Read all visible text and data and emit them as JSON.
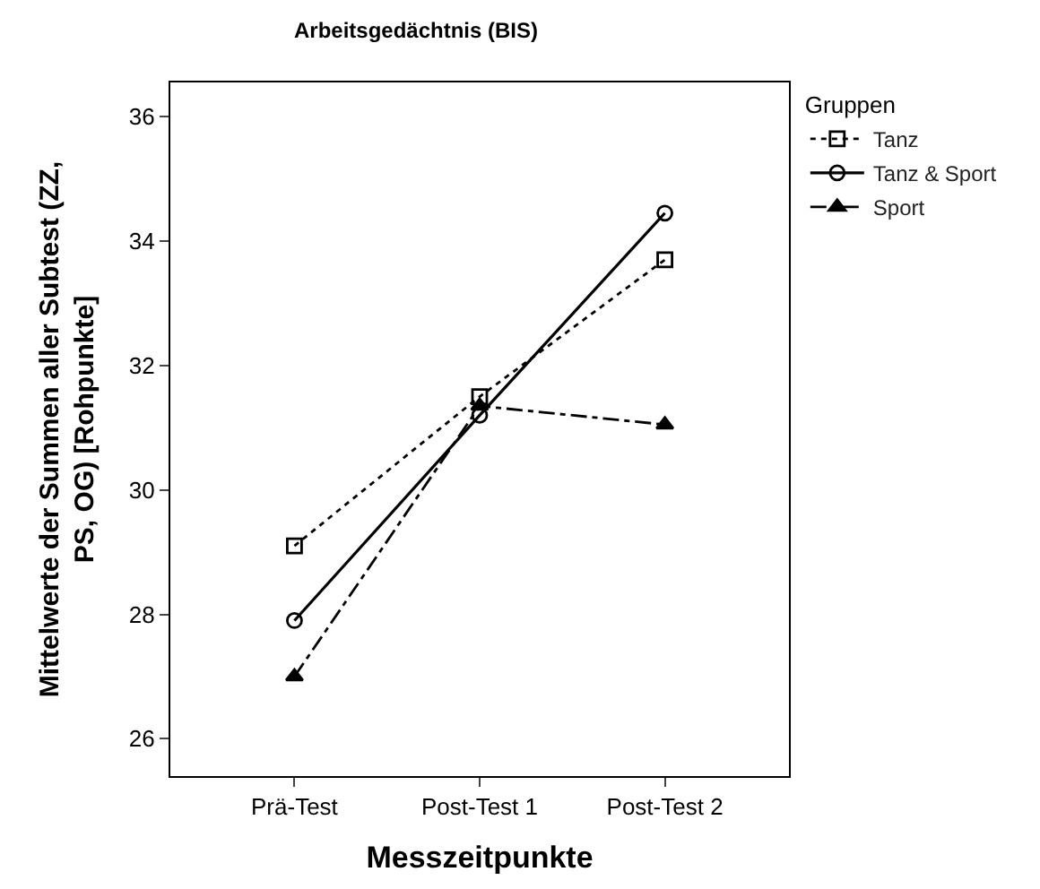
{
  "chart_data": {
    "type": "line",
    "title": "Arbeitsgedächtnis (BIS)",
    "xlabel": "Messzeitpunkte",
    "ylabel": "Mittelwerte der Summen aller Subtest (ZZ,\nPS, OG) [Rohpunkte]",
    "legend_title": "Gruppen",
    "legend": "top right",
    "categories": [
      "Prä-Test",
      "Post-Test 1",
      "Post-Test 2"
    ],
    "ylim": [
      25.4,
      36.55
    ],
    "yticks": [
      26,
      28,
      30,
      32,
      34,
      36
    ],
    "series": [
      {
        "name": "Tanz",
        "color": "#000000",
        "values": [
          29.1,
          31.5,
          33.7
        ],
        "marker": "square",
        "line_style": "dotted"
      },
      {
        "name": "Tanz & Sport",
        "color": "#000000",
        "values": [
          27.9,
          31.2,
          34.45
        ],
        "marker": "circle",
        "line_style": "solid"
      },
      {
        "name": "Sport",
        "color": "#000000",
        "values": [
          27.0,
          31.35,
          31.05
        ],
        "marker": "triangle",
        "line_style": "dashdot"
      }
    ]
  }
}
